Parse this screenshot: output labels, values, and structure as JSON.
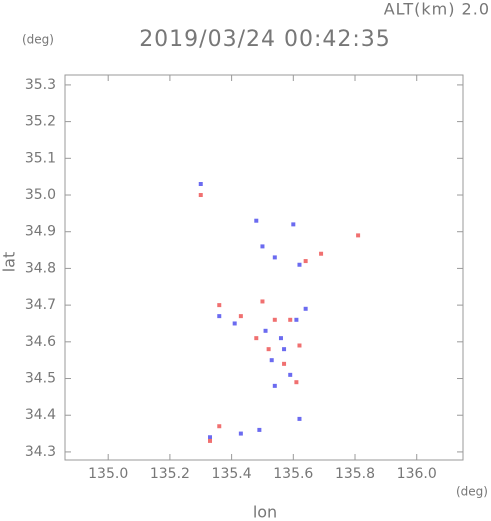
{
  "chart_data": {
    "type": "scatter",
    "title": "2019/03/24 00:42:35",
    "subtitle": "ALT(km) 2.0",
    "y_unit": "(deg)",
    "x_unit": "(deg)",
    "ylabel": "lat",
    "xlabel": "lon",
    "xlim": [
      134.86,
      136.15
    ],
    "ylim": [
      34.278,
      35.327
    ],
    "xticks": [
      {
        "value": 135,
        "label": "135.0"
      },
      135.2,
      135.4,
      135.6,
      135.8,
      {
        "value": 136,
        "label": "136.0"
      }
    ],
    "yticks": [
      35.3,
      35.2,
      35.1,
      {
        "value": 35,
        "label": "35.0"
      },
      34.9,
      34.8,
      34.7,
      34.6,
      34.5,
      34.4,
      34.3
    ],
    "series": [
      {
        "color": "#6b6bf0",
        "x": [
          135.3,
          135.48,
          135.6,
          135.5,
          135.54,
          135.62,
          135.36,
          135.41,
          135.51,
          135.56,
          135.61,
          135.53,
          135.59,
          135.54,
          135.43,
          135.49,
          135.62,
          135.33,
          135.64,
          135.57
        ],
        "y": [
          35.03,
          34.93,
          34.92,
          34.86,
          34.83,
          34.81,
          34.67,
          34.65,
          34.63,
          34.61,
          34.66,
          34.55,
          34.51,
          34.48,
          34.35,
          34.36,
          34.39,
          34.34,
          34.69,
          34.58
        ]
      },
      {
        "color": "#f07070",
        "x": [
          135.3,
          135.69,
          135.81,
          135.36,
          135.5,
          135.59,
          135.62,
          135.54,
          135.52,
          135.57,
          135.61,
          135.33,
          135.36,
          135.64,
          135.43,
          135.48
        ],
        "y": [
          35.0,
          34.84,
          34.89,
          34.7,
          34.71,
          34.66,
          34.59,
          34.66,
          34.58,
          34.54,
          34.49,
          34.33,
          34.37,
          34.82,
          34.67,
          34.61
        ]
      }
    ]
  }
}
